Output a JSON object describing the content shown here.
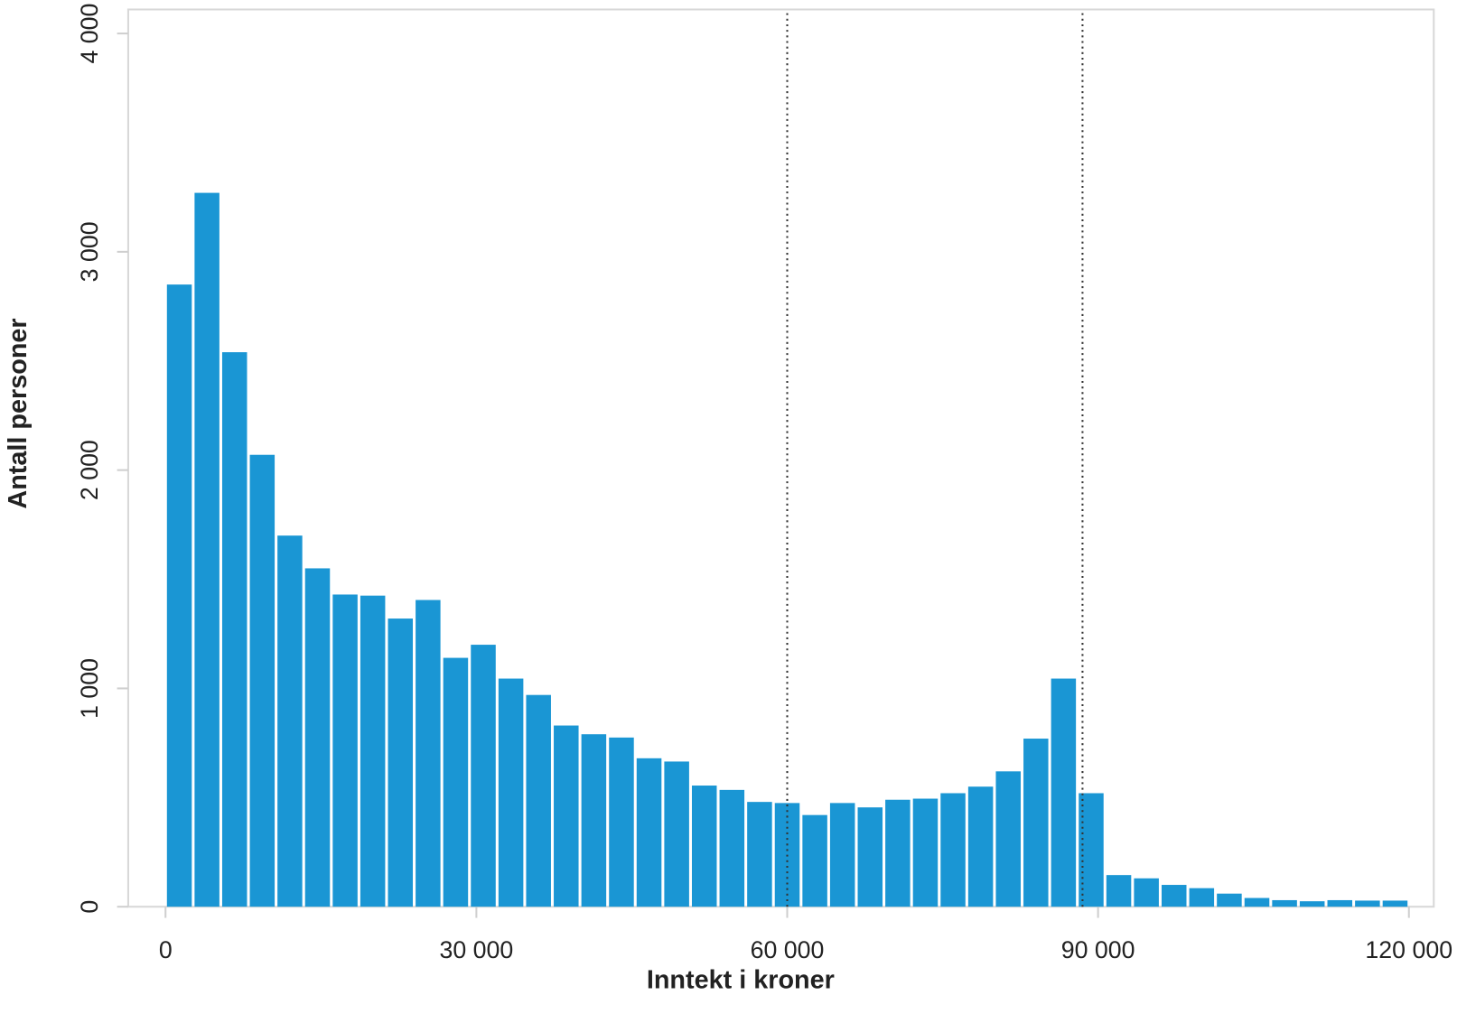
{
  "chart_data": {
    "type": "histogram",
    "x_label": "Inntekt i kroner",
    "y_label": "Antall personer",
    "color": "#1a96d4",
    "bins": [
      0,
      2667,
      5333,
      8000,
      10667,
      13333,
      16000,
      18667,
      21333,
      24000,
      26667,
      29333,
      32000,
      34667,
      37333,
      40000,
      42667,
      45333,
      48000,
      50667,
      53333,
      56000,
      58667,
      61333,
      64000,
      66667,
      69333,
      72000,
      74667,
      77333,
      80000,
      82667,
      85333,
      88000,
      90667,
      93333,
      96000,
      98667,
      101333,
      104000,
      106667,
      109333,
      112000,
      114667,
      117333,
      120000
    ],
    "values": [
      2850,
      3270,
      2540,
      2070,
      1700,
      1550,
      1430,
      1425,
      1320,
      1405,
      1140,
      1200,
      1045,
      970,
      830,
      790,
      775,
      680,
      665,
      555,
      535,
      480,
      475,
      420,
      475,
      455,
      490,
      495,
      520,
      550,
      620,
      770,
      1045,
      520,
      145,
      130,
      100,
      85,
      60,
      40,
      30,
      25,
      30,
      28,
      28
    ],
    "vlines": [
      60000,
      88500
    ],
    "xlim": [
      -3600,
      122400
    ],
    "ylim": [
      0,
      4110
    ],
    "xticks": [
      0,
      {
        "value": 30000,
        "label": "30 000"
      },
      {
        "value": 60000,
        "label": "60 000"
      },
      {
        "value": 90000,
        "label": "90 000"
      },
      {
        "value": 120000,
        "label": "120 000"
      }
    ],
    "yticks": [
      0,
      {
        "value": 1000,
        "label": "1 000"
      },
      {
        "value": 2000,
        "label": "2 000"
      },
      {
        "value": 3000,
        "label": "3 000"
      },
      {
        "value": 4000,
        "label": "4 000"
      }
    ]
  }
}
